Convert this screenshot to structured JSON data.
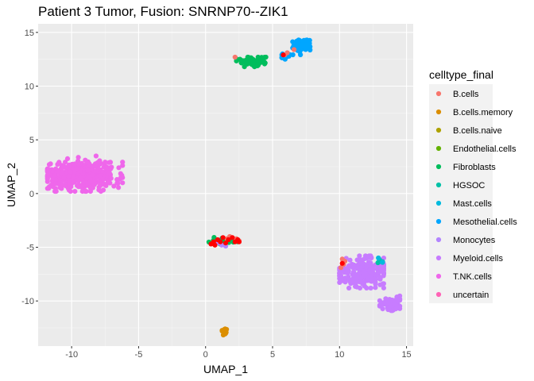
{
  "chart_data": {
    "type": "scatter",
    "title": "Patient 3 Tumor, Fusion:  SNRNP70--ZIK1",
    "xlabel": "UMAP_1",
    "ylabel": "UMAP_2",
    "xlim": [
      -12.5,
      15.5
    ],
    "ylim": [
      -14.2,
      15.8
    ],
    "xticks": [
      -10,
      -5,
      0,
      5,
      10,
      15
    ],
    "yticks": [
      15,
      10,
      5,
      0,
      -5,
      -10
    ],
    "grid": true,
    "legend": {
      "title": "celltype_final",
      "placement": "right",
      "entries": [
        {
          "label": "B.cells",
          "color": "#F8766D"
        },
        {
          "label": "B.cells.memory",
          "color": "#DB8E00"
        },
        {
          "label": "B.cells.naive",
          "color": "#AEA200"
        },
        {
          "label": "Endothelial.cells",
          "color": "#64B200"
        },
        {
          "label": "Fibroblasts",
          "color": "#00BD5C"
        },
        {
          "label": "HGSOC",
          "color": "#00C1A7"
        },
        {
          "label": "Mast.cells",
          "color": "#00BADE"
        },
        {
          "label": "Mesothelial.cells",
          "color": "#00A6FF"
        },
        {
          "label": "Monocytes",
          "color": "#B385FF"
        },
        {
          "label": "Myeloid.cells",
          "color": "#C77CFF"
        },
        {
          "label": "T.NK.cells",
          "color": "#EF67EB"
        },
        {
          "label": "uncertain",
          "color": "#FF63B6"
        }
      ]
    },
    "highlight_color": "#FF0000",
    "clusters": [
      {
        "celltype": "T.NK.cells",
        "color": "#EF67EB",
        "center": [
          -9.3,
          1.7
        ],
        "spread": [
          1.4,
          0.7
        ],
        "n": 420,
        "region": [
          -11.8,
          -6.2,
          0.2,
          3.5
        ]
      },
      {
        "celltype": "Myeloid.cells",
        "color": "#C77CFF",
        "center": [
          11.8,
          -7.3
        ],
        "spread": [
          1.0,
          0.7
        ],
        "n": 260,
        "region": [
          10.0,
          13.3,
          -8.8,
          -5.8
        ]
      },
      {
        "celltype": "Myeloid.cells",
        "color": "#C77CFF",
        "center": [
          13.9,
          -10.2
        ],
        "spread": [
          0.45,
          0.35
        ],
        "n": 60,
        "region": [
          13.0,
          14.5,
          -10.9,
          -9.3
        ]
      },
      {
        "celltype": "Mesothelial.cells",
        "color": "#00A6FF",
        "center": [
          7.2,
          13.8
        ],
        "spread": [
          0.4,
          0.3
        ],
        "n": 60,
        "region": [
          6.5,
          7.8,
          12.9,
          14.3
        ]
      },
      {
        "celltype": "Mesothelial.cells",
        "color": "#00A6FF",
        "center": [
          5.9,
          12.8
        ],
        "spread": [
          0.25,
          0.15
        ],
        "n": 12,
        "region": [
          5.5,
          6.3,
          12.5,
          13.1
        ]
      },
      {
        "celltype": "Fibroblasts",
        "color": "#00BD5C",
        "center": [
          3.4,
          12.3
        ],
        "spread": [
          0.6,
          0.2
        ],
        "n": 70,
        "region": [
          2.3,
          4.5,
          11.8,
          12.7
        ]
      },
      {
        "celltype": "B.cells.memory",
        "color": "#DB8E00",
        "center": [
          1.5,
          -12.8
        ],
        "spread": [
          0.15,
          0.15
        ],
        "n": 18,
        "region": [
          1.2,
          1.8,
          -13.2,
          -12.4
        ]
      },
      {
        "celltype": "Fibroblasts",
        "color": "#00BD5C",
        "center": [
          1.3,
          -4.4
        ],
        "spread": [
          0.5,
          0.15
        ],
        "n": 30,
        "region": [
          0.2,
          2.4,
          -4.8,
          -3.9
        ]
      },
      {
        "celltype": "HGSOC",
        "color": "#00C1A7",
        "center": [
          13.0,
          -6.3
        ],
        "spread": [
          0.15,
          0.12
        ],
        "n": 6,
        "region": [
          12.8,
          13.3,
          -6.6,
          -6.0
        ]
      }
    ],
    "colored_points": [
      {
        "celltype": "B.cells",
        "color": "#F8766D",
        "points": [
          [
            10.2,
            -6.1
          ],
          [
            10.3,
            -6.6
          ],
          [
            10.1,
            -6.9
          ],
          [
            10.4,
            -6.3
          ],
          [
            5.9,
            12.9
          ],
          [
            6.1,
            13.1
          ],
          [
            1.6,
            -4.2
          ],
          [
            1.8,
            -4.0
          ],
          [
            2.3,
            -4.2
          ],
          [
            2.5,
            -4.4
          ],
          [
            0.8,
            -4.5
          ],
          [
            2.2,
            12.7
          ],
          [
            6.6,
            13.4
          ]
        ]
      },
      {
        "celltype": "Monocytes",
        "color": "#B385FF",
        "points": [
          [
            1.2,
            -4.8
          ],
          [
            1.5,
            -4.9
          ],
          [
            0.9,
            -4.6
          ]
        ]
      },
      {
        "celltype": "Mast.cells",
        "color": "#00BADE",
        "points": [
          [
            12.9,
            -6.0
          ],
          [
            13.2,
            -6.4
          ]
        ]
      }
    ],
    "highlight_points": [
      [
        0.4,
        -4.7
      ],
      [
        0.6,
        -4.5
      ],
      [
        0.7,
        -4.8
      ],
      [
        0.9,
        -4.3
      ],
      [
        1.1,
        -4.5
      ],
      [
        1.3,
        -4.1
      ],
      [
        1.5,
        -4.6
      ],
      [
        1.7,
        -4.3
      ],
      [
        2.0,
        -4.1
      ],
      [
        2.2,
        -4.5
      ],
      [
        2.4,
        -4.3
      ],
      [
        2.5,
        -4.5
      ],
      [
        10.2,
        -6.5
      ],
      [
        5.8,
        12.9
      ]
    ]
  }
}
